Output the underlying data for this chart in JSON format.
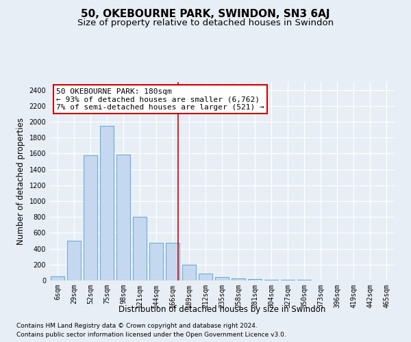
{
  "title": "50, OKEBOURNE PARK, SWINDON, SN3 6AJ",
  "subtitle": "Size of property relative to detached houses in Swindon",
  "xlabel": "Distribution of detached houses by size in Swindon",
  "ylabel": "Number of detached properties",
  "footer_line1": "Contains HM Land Registry data © Crown copyright and database right 2024.",
  "footer_line2": "Contains public sector information licensed under the Open Government Licence v3.0.",
  "categories": [
    "6sqm",
    "29sqm",
    "52sqm",
    "75sqm",
    "98sqm",
    "121sqm",
    "144sqm",
    "166sqm",
    "189sqm",
    "212sqm",
    "235sqm",
    "258sqm",
    "281sqm",
    "304sqm",
    "327sqm",
    "350sqm",
    "373sqm",
    "396sqm",
    "419sqm",
    "442sqm",
    "465sqm"
  ],
  "values": [
    50,
    500,
    1580,
    1950,
    1590,
    800,
    470,
    470,
    200,
    90,
    40,
    30,
    20,
    10,
    5,
    5,
    3,
    2,
    1,
    1,
    1
  ],
  "bar_color": "#c5d8ef",
  "bar_edge_color": "#6baed6",
  "vline_x": 7.35,
  "vline_color": "#cc0000",
  "annotation_title": "50 OKEBOURNE PARK: 180sqm",
  "annotation_line1": "← 93% of detached houses are smaller (6,762)",
  "annotation_line2": "7% of semi-detached houses are larger (521) →",
  "annotation_box_color": "#ffffff",
  "annotation_border_color": "#cc0000",
  "ylim": [
    0,
    2500
  ],
  "yticks": [
    0,
    200,
    400,
    600,
    800,
    1000,
    1200,
    1400,
    1600,
    1800,
    2000,
    2200,
    2400
  ],
  "bg_color": "#e8eef5",
  "grid_color": "#ffffff",
  "title_fontsize": 11,
  "subtitle_fontsize": 9.5,
  "axis_label_fontsize": 8.5,
  "tick_fontsize": 7,
  "footer_fontsize": 6.5,
  "annotation_fontsize": 8
}
